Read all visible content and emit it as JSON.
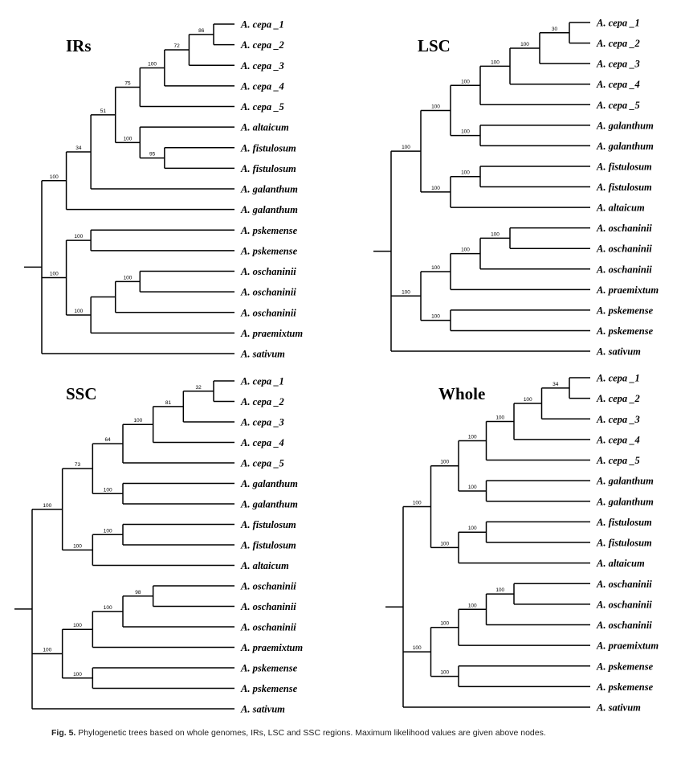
{
  "caption": {
    "label": "Fig. 5.",
    "text": "Phylogenetic trees based on whole genomes, IRs, LSC and SSC regions. Maximum likelihood values are given above nodes."
  },
  "trees": [
    {
      "id": "irs",
      "title": "IRs",
      "tree": {
        "bs": "",
        "c": [
          {
            "bs": "100",
            "c": [
              {
                "bs": "34",
                "c": [
                  {
                    "bs": "51",
                    "c": [
                      {
                        "bs": "75",
                        "c": [
                          {
                            "bs": "100",
                            "c": [
                              {
                                "bs": "72",
                                "c": [
                                  {
                                    "bs": "86",
                                    "c": [
                                      {
                                        "n": "A. cepa _1"
                                      },
                                      {
                                        "n": "A. cepa _2"
                                      }
                                    ]
                                  },
                                  {
                                    "n": "A. cepa _3"
                                  }
                                ]
                              },
                              {
                                "n": "A. cepa _4"
                              }
                            ]
                          },
                          {
                            "n": "A. cepa _5"
                          }
                        ]
                      },
                      {
                        "bs": "100",
                        "c": [
                          {
                            "n": "A. altaicum"
                          },
                          {
                            "bs": "95",
                            "c": [
                              {
                                "n": "A. fistulosum"
                              },
                              {
                                "n": "A. fistulosum"
                              }
                            ]
                          }
                        ]
                      }
                    ]
                  },
                  {
                    "n": "A. galanthum"
                  }
                ]
              },
              {
                "n": "A. galanthum"
              }
            ]
          },
          {
            "bs": "100",
            "c": [
              {
                "bs": "100",
                "c": [
                  {
                    "n": "A. pskemense"
                  },
                  {
                    "n": "A. pskemense"
                  }
                ]
              },
              {
                "bs": "100",
                "c": [
                  {
                    "bs": "",
                    "c": [
                      {
                        "bs": "100",
                        "c": [
                          {
                            "n": "A. oschaninii"
                          },
                          {
                            "n": "A. oschaninii"
                          }
                        ]
                      },
                      {
                        "n": "A. oschaninii"
                      }
                    ]
                  },
                  {
                    "n": "A. praemixtum"
                  }
                ]
              }
            ]
          },
          {
            "n": "A. sativum"
          }
        ]
      }
    },
    {
      "id": "lsc",
      "title": "LSC",
      "tree": {
        "bs": "",
        "c": [
          {
            "bs": "100",
            "c": [
              {
                "bs": "100",
                "c": [
                  {
                    "bs": "100",
                    "c": [
                      {
                        "bs": "100",
                        "c": [
                          {
                            "bs": "100",
                            "c": [
                              {
                                "bs": "30",
                                "c": [
                                  {
                                    "n": "A. cepa _1"
                                  },
                                  {
                                    "n": "A. cepa _2"
                                  }
                                ]
                              },
                              {
                                "n": "A. cepa _3"
                              }
                            ]
                          },
                          {
                            "n": "A. cepa _4"
                          }
                        ]
                      },
                      {
                        "n": "A. cepa _5"
                      }
                    ]
                  },
                  {
                    "bs": "100",
                    "c": [
                      {
                        "n": "A. galanthum"
                      },
                      {
                        "n": "A. galanthum"
                      }
                    ]
                  }
                ]
              },
              {
                "bs": "100",
                "c": [
                  {
                    "bs": "100",
                    "c": [
                      {
                        "n": "A. fistulosum"
                      },
                      {
                        "n": "A. fistulosum"
                      }
                    ]
                  },
                  {
                    "n": "A. altaicum"
                  }
                ]
              }
            ]
          },
          {
            "bs": "100",
            "c": [
              {
                "bs": "100",
                "c": [
                  {
                    "bs": "100",
                    "c": [
                      {
                        "bs": "100",
                        "c": [
                          {
                            "n": "A. oschaninii"
                          },
                          {
                            "n": "A. oschaninii"
                          }
                        ]
                      },
                      {
                        "n": "A. oschaninii"
                      }
                    ]
                  },
                  {
                    "n": "A. praemixtum"
                  }
                ]
              },
              {
                "bs": "100",
                "c": [
                  {
                    "n": "A. pskemense"
                  },
                  {
                    "n": "A. pskemense"
                  }
                ]
              }
            ]
          },
          {
            "n": "A. sativum"
          }
        ]
      }
    },
    {
      "id": "ssc",
      "title": "SSC",
      "tree": {
        "bs": "",
        "c": [
          {
            "bs": "100",
            "c": [
              {
                "bs": "73",
                "c": [
                  {
                    "bs": "64",
                    "c": [
                      {
                        "bs": "100",
                        "c": [
                          {
                            "bs": "81",
                            "c": [
                              {
                                "bs": "32",
                                "c": [
                                  {
                                    "n": "A. cepa _1"
                                  },
                                  {
                                    "n": "A. cepa _2"
                                  }
                                ]
                              },
                              {
                                "n": "A. cepa _3"
                              }
                            ]
                          },
                          {
                            "n": "A. cepa _4"
                          }
                        ]
                      },
                      {
                        "n": "A. cepa _5"
                      }
                    ]
                  },
                  {
                    "bs": "100",
                    "c": [
                      {
                        "n": "A. galanthum"
                      },
                      {
                        "n": "A. galanthum"
                      }
                    ]
                  }
                ]
              },
              {
                "bs": "100",
                "c": [
                  {
                    "bs": "100",
                    "c": [
                      {
                        "n": "A. fistulosum"
                      },
                      {
                        "n": "A. fistulosum"
                      }
                    ]
                  },
                  {
                    "n": "A. altaicum"
                  }
                ]
              }
            ]
          },
          {
            "bs": "100",
            "c": [
              {
                "bs": "100",
                "c": [
                  {
                    "bs": "100",
                    "c": [
                      {
                        "bs": "98",
                        "c": [
                          {
                            "n": "A. oschaninii"
                          },
                          {
                            "n": "A. oschaninii"
                          }
                        ]
                      },
                      {
                        "n": "A. oschaninii"
                      }
                    ]
                  },
                  {
                    "n": "A. praemixtum"
                  }
                ]
              },
              {
                "bs": "100",
                "c": [
                  {
                    "n": "A. pskemense"
                  },
                  {
                    "n": "A. pskemense"
                  }
                ]
              }
            ]
          },
          {
            "n": "A. sativum"
          }
        ]
      }
    },
    {
      "id": "whole",
      "title": "Whole",
      "tree": {
        "bs": "",
        "c": [
          {
            "bs": "100",
            "c": [
              {
                "bs": "100",
                "c": [
                  {
                    "bs": "100",
                    "c": [
                      {
                        "bs": "100",
                        "c": [
                          {
                            "bs": "100",
                            "c": [
                              {
                                "bs": "34",
                                "c": [
                                  {
                                    "n": "A. cepa _1"
                                  },
                                  {
                                    "n": "A. cepa _2"
                                  }
                                ]
                              },
                              {
                                "n": "A. cepa _3"
                              }
                            ]
                          },
                          {
                            "n": "A. cepa _4"
                          }
                        ]
                      },
                      {
                        "n": "A. cepa _5"
                      }
                    ]
                  },
                  {
                    "bs": "100",
                    "c": [
                      {
                        "n": "A. galanthum"
                      },
                      {
                        "n": "A. galanthum"
                      }
                    ]
                  }
                ]
              },
              {
                "bs": "100",
                "c": [
                  {
                    "bs": "100",
                    "c": [
                      {
                        "n": "A. fistulosum"
                      },
                      {
                        "n": "A. fistulosum"
                      }
                    ]
                  },
                  {
                    "n": "A. altaicum"
                  }
                ]
              }
            ]
          },
          {
            "bs": "100",
            "c": [
              {
                "bs": "100",
                "c": [
                  {
                    "bs": "100",
                    "c": [
                      {
                        "bs": "100",
                        "c": [
                          {
                            "n": "A. oschaninii"
                          },
                          {
                            "n": "A. oschaninii"
                          }
                        ]
                      },
                      {
                        "n": "A. oschaninii"
                      }
                    ]
                  },
                  {
                    "n": "A. praemixtum"
                  }
                ]
              },
              {
                "bs": "100",
                "c": [
                  {
                    "n": "A. pskemense"
                  },
                  {
                    "n": "A. pskemense"
                  }
                ]
              }
            ]
          },
          {
            "n": "A. sativum"
          }
        ]
      }
    }
  ]
}
